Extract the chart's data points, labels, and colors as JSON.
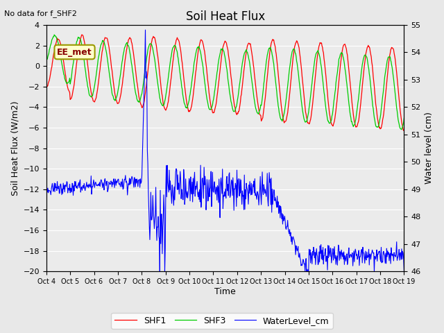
{
  "title": "Soil Heat Flux",
  "note": "No data for f_SHF2",
  "ylabel_left": "Soil Heat Flux (W/m2)",
  "ylabel_right": "Water level (cm)",
  "xlabel": "Time",
  "ylim_left": [
    -20,
    4
  ],
  "ylim_right": [
    46.0,
    55.0
  ],
  "yticks_left": [
    -20,
    -18,
    -16,
    -14,
    -12,
    -10,
    -8,
    -6,
    -4,
    -2,
    0,
    2,
    4
  ],
  "yticks_right": [
    46.0,
    47.0,
    48.0,
    49.0,
    50.0,
    51.0,
    52.0,
    53.0,
    54.0,
    55.0
  ],
  "xtick_labels": [
    "Oct 4",
    "Oct 5",
    "Oct 6",
    "Oct 7",
    "Oct 8",
    "Oct 9",
    "Oct 10",
    "Oct 11",
    "Oct 12",
    "Oct 13",
    "Oct 14",
    "Oct 15",
    "Oct 16",
    "Oct 17",
    "Oct 18",
    "Oct 19"
  ],
  "color_SHF1": "#ff0000",
  "color_SHF3": "#00cc00",
  "color_WL": "#0000ff",
  "bg_color": "#e8e8e8",
  "plot_bg": "#ebebeb",
  "grid_color": "#ffffff",
  "annotation_text": "EE_met",
  "annotation_box_facecolor": "#ffffcc",
  "annotation_box_edgecolor": "#999900",
  "annotation_text_color": "#880000",
  "legend_entries": [
    "SHF1",
    "SHF3",
    "WaterLevel_cm"
  ],
  "figsize": [
    6.4,
    4.8
  ],
  "dpi": 100
}
